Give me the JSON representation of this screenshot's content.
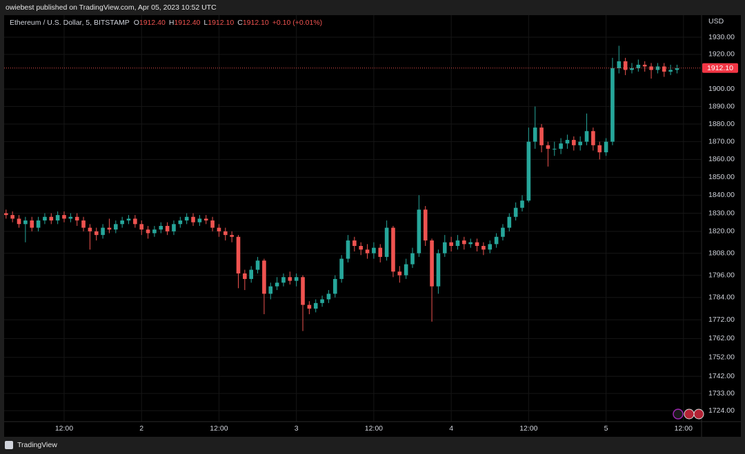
{
  "header": {
    "text": "owiebest published on TradingView.com, Apr 05, 2023 10:52 UTC"
  },
  "footer": {
    "brand": "TradingView"
  },
  "chart_data": {
    "type": "candlestick",
    "title": "Ethereum / U.S. Dollar, 5, BITSTAMP",
    "legend": {
      "ohlc": [
        {
          "key": "O",
          "value": "1912.40"
        },
        {
          "key": "H",
          "value": "1912.40"
        },
        {
          "key": "L",
          "value": "1912.10"
        },
        {
          "key": "C",
          "value": "1912.10"
        }
      ],
      "change": "+0.10 (+0.01%)"
    },
    "y_axis_label": "USD",
    "up_color": "#26a69a",
    "down_color": "#ef5350",
    "log_scale": true,
    "grid": true,
    "last_price": {
      "value": 1912.1,
      "label": "1912.10"
    },
    "xlim": [
      -21.3,
      86.8
    ],
    "xticks": [
      {
        "value": -12,
        "label": "12:00"
      },
      {
        "value": 0,
        "label": "2"
      },
      {
        "value": 12,
        "label": "12:00"
      },
      {
        "value": 24,
        "label": "3"
      },
      {
        "value": 36,
        "label": "12:00"
      },
      {
        "value": 48,
        "label": "4"
      },
      {
        "value": 60,
        "label": "12:00"
      },
      {
        "value": 72,
        "label": "5"
      },
      {
        "value": 84,
        "label": "12:00"
      }
    ],
    "ylim": [
      1718.3,
      1942.9
    ],
    "yticks": [
      {
        "value": 1930,
        "label": "1930.00"
      },
      {
        "value": 1920,
        "label": "1920.00"
      },
      {
        "value": 1900,
        "label": "1900.00"
      },
      {
        "value": 1890,
        "label": "1890.00"
      },
      {
        "value": 1880,
        "label": "1880.00"
      },
      {
        "value": 1870,
        "label": "1870.00"
      },
      {
        "value": 1860,
        "label": "1860.00"
      },
      {
        "value": 1850,
        "label": "1850.00"
      },
      {
        "value": 1840,
        "label": "1840.00"
      },
      {
        "value": 1830,
        "label": "1830.00"
      },
      {
        "value": 1820,
        "label": "1820.00"
      },
      {
        "value": 1808,
        "label": "1808.00"
      },
      {
        "value": 1796,
        "label": "1796.00"
      },
      {
        "value": 1784,
        "label": "1784.00"
      },
      {
        "value": 1772,
        "label": "1772.00"
      },
      {
        "value": 1762,
        "label": "1762.00"
      },
      {
        "value": 1752,
        "label": "1752.00"
      },
      {
        "value": 1742,
        "label": "1742.00"
      },
      {
        "value": 1733,
        "label": "1733.00"
      },
      {
        "value": 1724,
        "label": "1724.00"
      }
    ],
    "x": [
      -21,
      -20,
      -19,
      -18,
      -17,
      -16,
      -15,
      -14,
      -13,
      -12,
      -11,
      -10,
      -9,
      -8,
      -7,
      -6,
      -5,
      -4,
      -3,
      -2,
      -1,
      0,
      1,
      2,
      3,
      4,
      5,
      6,
      7,
      8,
      9,
      10,
      11,
      12,
      13,
      14,
      15,
      16,
      17,
      18,
      19,
      20,
      21,
      22,
      23,
      24,
      25,
      26,
      27,
      28,
      29,
      30,
      31,
      32,
      33,
      34,
      35,
      36,
      37,
      38,
      39,
      40,
      41,
      42,
      43,
      44,
      45,
      46,
      47,
      48,
      49,
      50,
      51,
      52,
      53,
      54,
      55,
      56,
      57,
      58,
      59,
      60,
      61,
      62,
      63,
      64,
      65,
      66,
      67,
      68,
      69,
      70,
      71,
      72,
      73,
      74,
      75,
      76,
      77,
      78,
      79,
      80,
      81,
      82,
      83
    ],
    "open": [
      1830,
      1829,
      1827,
      1824,
      1826,
      1822,
      1826,
      1828,
      1826,
      1829,
      1827,
      1828,
      1826,
      1822,
      1820,
      1818,
      1822,
      1821,
      1824,
      1826,
      1827,
      1824,
      1821,
      1819,
      1821,
      1823,
      1820,
      1824,
      1826,
      1828,
      1825,
      1827,
      1826,
      1822,
      1820,
      1818,
      1817,
      1797,
      1794,
      1799,
      1804,
      1786,
      1790,
      1792,
      1795,
      1793,
      1795,
      1780,
      1778,
      1781,
      1783,
      1786,
      1794,
      1805,
      1815,
      1812,
      1810,
      1808,
      1811,
      1806,
      1822,
      1798,
      1796,
      1802,
      1808,
      1832,
      1815,
      1790,
      1808,
      1814,
      1812,
      1815,
      1813,
      1814,
      1812,
      1810,
      1813,
      1817,
      1822,
      1828,
      1833,
      1837,
      1870,
      1878,
      1868,
      1866,
      1866,
      1869,
      1871,
      1868,
      1870,
      1876,
      1868,
      1864,
      1870,
      1912,
      1916,
      1911,
      1912,
      1914,
      1913,
      1911,
      1913,
      1910,
      1911
    ],
    "high": [
      1832,
      1831,
      1829,
      1828,
      1828,
      1828,
      1830,
      1830,
      1831,
      1831,
      1830,
      1830,
      1828,
      1824,
      1822,
      1824,
      1827,
      1826,
      1828,
      1829,
      1829,
      1826,
      1823,
      1823,
      1825,
      1825,
      1826,
      1828,
      1830,
      1830,
      1829,
      1829,
      1828,
      1824,
      1822,
      1820,
      1818,
      1799,
      1801,
      1806,
      1805,
      1792,
      1795,
      1797,
      1798,
      1797,
      1796,
      1782,
      1783,
      1785,
      1788,
      1796,
      1807,
      1818,
      1817,
      1814,
      1813,
      1814,
      1813,
      1826,
      1823,
      1801,
      1805,
      1811,
      1840,
      1834,
      1816,
      1810,
      1818,
      1817,
      1818,
      1817,
      1816,
      1816,
      1814,
      1815,
      1819,
      1824,
      1830,
      1836,
      1840,
      1878,
      1890,
      1880,
      1870,
      1870,
      1872,
      1874,
      1873,
      1873,
      1886,
      1878,
      1870,
      1872,
      1918,
      1925,
      1918,
      1915,
      1917,
      1916,
      1915,
      1915,
      1915,
      1914,
      1914
    ],
    "low": [
      1827,
      1825,
      1822,
      1814,
      1820,
      1820,
      1824,
      1824,
      1824,
      1825,
      1825,
      1823,
      1820,
      1810,
      1815,
      1816,
      1819,
      1819,
      1822,
      1824,
      1822,
      1818,
      1816,
      1817,
      1819,
      1818,
      1818,
      1822,
      1824,
      1823,
      1823,
      1824,
      1820,
      1817,
      1815,
      1814,
      1789,
      1788,
      1792,
      1797,
      1775,
      1783,
      1788,
      1790,
      1791,
      1790,
      1766,
      1775,
      1776,
      1779,
      1781,
      1784,
      1792,
      1803,
      1809,
      1807,
      1805,
      1805,
      1803,
      1804,
      1795,
      1792,
      1794,
      1800,
      1806,
      1812,
      1771,
      1786,
      1806,
      1809,
      1810,
      1810,
      1811,
      1809,
      1807,
      1808,
      1811,
      1815,
      1820,
      1826,
      1831,
      1836,
      1866,
      1864,
      1856,
      1862,
      1863,
      1866,
      1865,
      1865,
      1868,
      1865,
      1860,
      1862,
      1868,
      1909,
      1908,
      1909,
      1910,
      1910,
      1906,
      1909,
      1907,
      1908,
      1909
    ],
    "close": [
      1829,
      1827,
      1824,
      1826,
      1822,
      1826,
      1828,
      1826,
      1829,
      1827,
      1828,
      1826,
      1822,
      1820,
      1818,
      1822,
      1821,
      1824,
      1826,
      1827,
      1824,
      1821,
      1819,
      1821,
      1823,
      1820,
      1824,
      1826,
      1828,
      1825,
      1827,
      1826,
      1822,
      1820,
      1818,
      1817,
      1797,
      1794,
      1799,
      1804,
      1786,
      1790,
      1792,
      1795,
      1793,
      1795,
      1780,
      1778,
      1781,
      1783,
      1786,
      1794,
      1805,
      1815,
      1812,
      1810,
      1808,
      1811,
      1806,
      1822,
      1798,
      1796,
      1802,
      1808,
      1832,
      1815,
      1790,
      1808,
      1814,
      1812,
      1815,
      1813,
      1814,
      1812,
      1810,
      1813,
      1817,
      1822,
      1828,
      1833,
      1837,
      1870,
      1878,
      1868,
      1866,
      1866,
      1869,
      1871,
      1868,
      1870,
      1876,
      1868,
      1864,
      1870,
      1912,
      1916,
      1911,
      1912,
      1914,
      1913,
      1911,
      1913,
      1910,
      1911,
      1912
    ]
  }
}
